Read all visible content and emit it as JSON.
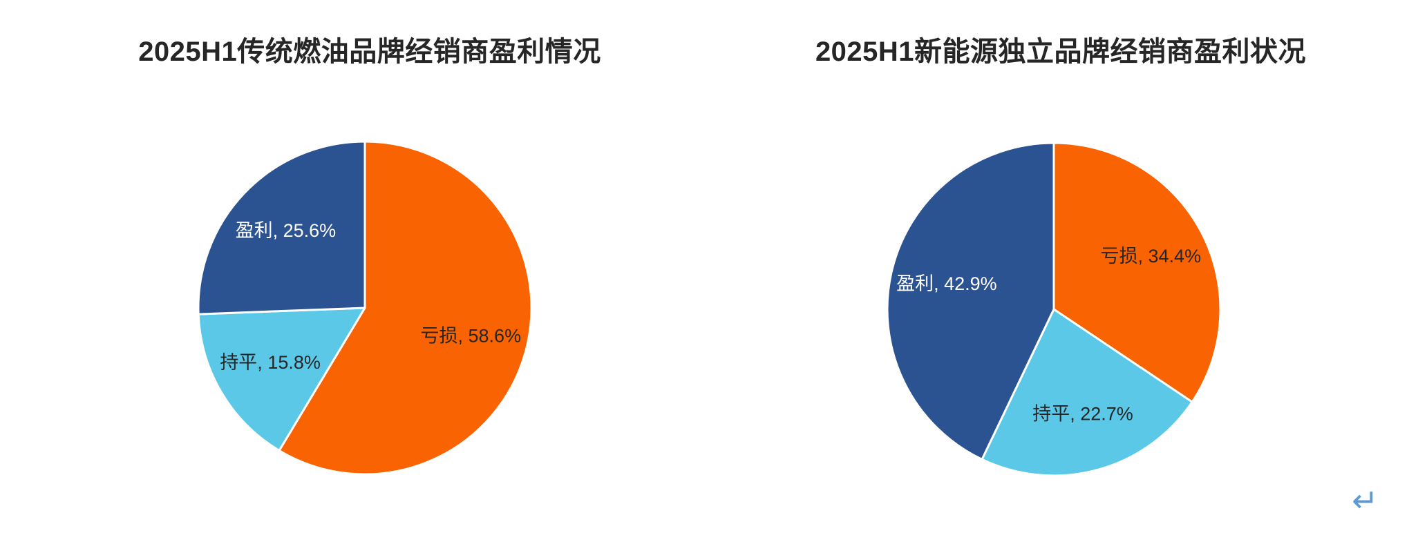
{
  "chart_data": [
    {
      "type": "pie",
      "title": "2025H1传统燃油品牌经销商盈利情况",
      "start_angle_deg": 0,
      "direction": "clockwise",
      "legend_position": "none",
      "slices": [
        {
          "key": "loss",
          "name": "亏损",
          "value": 58.6,
          "label": "亏损, 58.6%",
          "color": "#F96302",
          "label_color": "#262626"
        },
        {
          "key": "breakeven",
          "name": "持平",
          "value": 15.8,
          "label": "持平, 15.8%",
          "color": "#5BC8E8",
          "label_color": "#262626"
        },
        {
          "key": "profit",
          "name": "盈利",
          "value": 25.6,
          "label": "盈利, 25.6%",
          "color": "#2B5291",
          "label_color": "#FFFFFF"
        }
      ]
    },
    {
      "type": "pie",
      "title": "2025H1新能源独立品牌经销商盈利状况",
      "start_angle_deg": 0,
      "direction": "clockwise",
      "legend_position": "none",
      "slices": [
        {
          "key": "loss",
          "name": "亏损",
          "value": 34.4,
          "label": "亏损, 34.4%",
          "color": "#F96302",
          "label_color": "#262626"
        },
        {
          "key": "breakeven",
          "name": "持平",
          "value": 22.7,
          "label": "持平, 22.7%",
          "color": "#5BC8E8",
          "label_color": "#262626"
        },
        {
          "key": "profit",
          "name": "盈利",
          "value": 42.9,
          "label": "盈利, 42.9%",
          "color": "#2B5291",
          "label_color": "#FFFFFF"
        }
      ]
    }
  ],
  "annotations": {
    "return_mark": "↵",
    "return_mark_color": "#5B9BD5"
  }
}
